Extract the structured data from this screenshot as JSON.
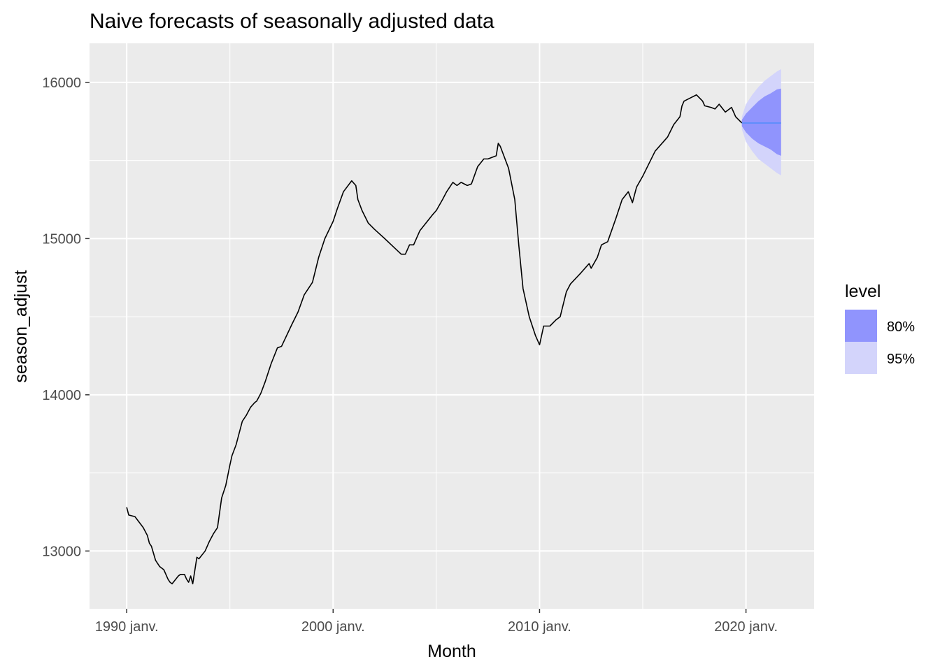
{
  "chart_data": {
    "type": "line",
    "title": "Naive forecasts of seasonally adjusted data",
    "xlabel": "Month",
    "ylabel": "season_adjust",
    "x_tick_labels": [
      "1990 janv.",
      "2000 janv.",
      "2010 janv.",
      "2020 janv."
    ],
    "x_ticks": [
      1990,
      2000,
      2010,
      2020
    ],
    "y_ticks": [
      13000,
      14000,
      15000,
      16000
    ],
    "y_tick_labels": [
      "13000",
      "14000",
      "15000",
      "16000"
    ],
    "xlim": [
      1988.2,
      2023.3
    ],
    "ylim": [
      12630,
      16250
    ],
    "grid": true,
    "legend": {
      "title": "level",
      "position": "right",
      "entries": [
        {
          "label": "80%",
          "color": "#9094fd"
        },
        {
          "label": "95%",
          "color": "#d3d4fb"
        }
      ]
    },
    "colors": {
      "panel_background": "#ebebeb",
      "grid": "#ffffff",
      "history_line": "#000000",
      "forecast_line": "#5a8dfb",
      "band_80": "#9094fd",
      "band_95": "#d3d4fb"
    },
    "series": [
      {
        "name": "",
        "x": [
          1990.0,
          1990.1,
          1990.4,
          1990.8,
          1991.0,
          1991.1,
          1991.2,
          1991.4,
          1991.6,
          1991.8,
          1991.9,
          1992.0,
          1992.1,
          1992.2,
          1992.5,
          1992.6,
          1992.8,
          1992.9,
          1993.0,
          1993.1,
          1993.2,
          1993.4,
          1993.5,
          1993.8,
          1994.0,
          1994.2,
          1994.4,
          1994.6,
          1994.8,
          1995.0,
          1995.1,
          1995.3,
          1995.6,
          1995.8,
          1996.0,
          1996.2,
          1996.3,
          1996.5,
          1996.7,
          1997.0,
          1997.3,
          1997.5,
          1998.0,
          1998.3,
          1998.6,
          1999.0,
          1999.3,
          1999.6,
          2000.0,
          2000.2,
          2000.5,
          2000.9,
          2001.1,
          2001.2,
          2001.4,
          2001.7,
          2002.0,
          2002.5,
          2002.9,
          2003.3,
          2003.5,
          2003.7,
          2003.9,
          2004.2,
          2004.5,
          2004.8,
          2005.0,
          2005.3,
          2005.5,
          2005.8,
          2006.0,
          2006.2,
          2006.5,
          2006.7,
          2007.0,
          2007.3,
          2007.5,
          2007.9,
          2008.0,
          2008.1,
          2008.5,
          2008.8,
          2009.0,
          2009.2,
          2009.5,
          2009.8,
          2010.0,
          2010.2,
          2010.5,
          2010.8,
          2011.0,
          2011.3,
          2011.5,
          2012.0,
          2012.4,
          2012.5,
          2012.8,
          2013.0,
          2013.3,
          2013.7,
          2014.0,
          2014.3,
          2014.5,
          2014.7,
          2015.0,
          2015.3,
          2015.6,
          2016.0,
          2016.2,
          2016.5,
          2016.8,
          2016.9,
          2017.0,
          2017.3,
          2017.6,
          2017.9,
          2018.0,
          2018.3,
          2018.5,
          2018.7,
          2019.0,
          2019.3,
          2019.5,
          2019.8
        ],
        "y": [
          13280,
          13230,
          13220,
          13150,
          13100,
          13050,
          13030,
          12940,
          12900,
          12880,
          12850,
          12820,
          12800,
          12790,
          12840,
          12850,
          12850,
          12820,
          12800,
          12840,
          12790,
          12960,
          12950,
          13000,
          13060,
          13110,
          13150,
          13340,
          13420,
          13550,
          13610,
          13680,
          13830,
          13870,
          13920,
          13950,
          13960,
          14010,
          14080,
          14200,
          14300,
          14310,
          14450,
          14530,
          14640,
          14720,
          14880,
          15000,
          15110,
          15190,
          15300,
          15370,
          15340,
          15250,
          15180,
          15100,
          15060,
          15000,
          14950,
          14900,
          14900,
          14960,
          14960,
          15050,
          15100,
          15150,
          15180,
          15250,
          15300,
          15360,
          15340,
          15360,
          15340,
          15350,
          15460,
          15510,
          15510,
          15530,
          15610,
          15590,
          15450,
          15250,
          14950,
          14680,
          14500,
          14380,
          14320,
          14440,
          14440,
          14480,
          14500,
          14660,
          14710,
          14780,
          14840,
          14810,
          14880,
          14960,
          14980,
          15130,
          15250,
          15300,
          15230,
          15330,
          15400,
          15480,
          15560,
          15620,
          15650,
          15730,
          15780,
          15850,
          15880,
          15900,
          15920,
          15880,
          15850,
          15840,
          15830,
          15860,
          15810,
          15840,
          15780,
          15740
        ]
      },
      {
        "name": "",
        "x": [
          2019.8,
          2021.7
        ],
        "y": [
          15740,
          15740
        ]
      }
    ],
    "bands": [
      {
        "level": "95%",
        "x": [
          2019.8,
          2020.0,
          2020.3,
          2020.6,
          2020.9,
          2021.2,
          2021.5,
          2021.7
        ],
        "lower": [
          15700,
          15620,
          15560,
          15510,
          15480,
          15450,
          15420,
          15405
        ],
        "upper": [
          15780,
          15860,
          15920,
          15970,
          16010,
          16040,
          16070,
          16085
        ]
      },
      {
        "level": "80%",
        "x": [
          2019.8,
          2020.0,
          2020.3,
          2020.6,
          2020.9,
          2021.2,
          2021.5,
          2021.7
        ],
        "lower": [
          15720,
          15680,
          15640,
          15610,
          15590,
          15570,
          15540,
          15530
        ],
        "upper": [
          15760,
          15800,
          15840,
          15880,
          15910,
          15930,
          15955,
          15960
        ]
      }
    ]
  }
}
